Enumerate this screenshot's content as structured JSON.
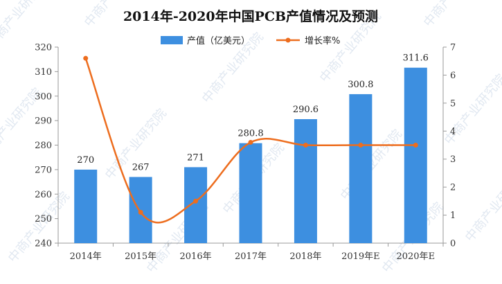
{
  "watermark": "中商产业研究院",
  "chart_data": {
    "type": "bar",
    "title": "2014年-2020年中国PCB产值情况及预测",
    "categories": [
      "2014年",
      "2015年",
      "2016年",
      "2017年",
      "2018年",
      "2019年E",
      "2020年E"
    ],
    "series": [
      {
        "name": "产值（亿美元）",
        "type": "bar",
        "axis": "left",
        "values": [
          270,
          267,
          271,
          280.8,
          290.6,
          300.8,
          311.6
        ],
        "labels": [
          "270",
          "267",
          "271",
          "280.8",
          "290.6",
          "300.8",
          "311.6"
        ],
        "color": "#3d8fe0"
      },
      {
        "name": "增长率%",
        "type": "line",
        "axis": "right",
        "smooth": true,
        "values": [
          6.6,
          1.1,
          1.5,
          3.6,
          3.5,
          3.5,
          3.5
        ],
        "color": "#ed6d1e"
      }
    ],
    "ylim_left": [
      240,
      320
    ],
    "yticks_left": [
      "240",
      "250",
      "260",
      "270",
      "280",
      "290",
      "300",
      "310",
      "320"
    ],
    "ylim_right": [
      0,
      7
    ],
    "yticks_right": [
      "0",
      "1",
      "2",
      "3",
      "4",
      "5",
      "6",
      "7"
    ],
    "grid": false,
    "legend_position": "top"
  }
}
